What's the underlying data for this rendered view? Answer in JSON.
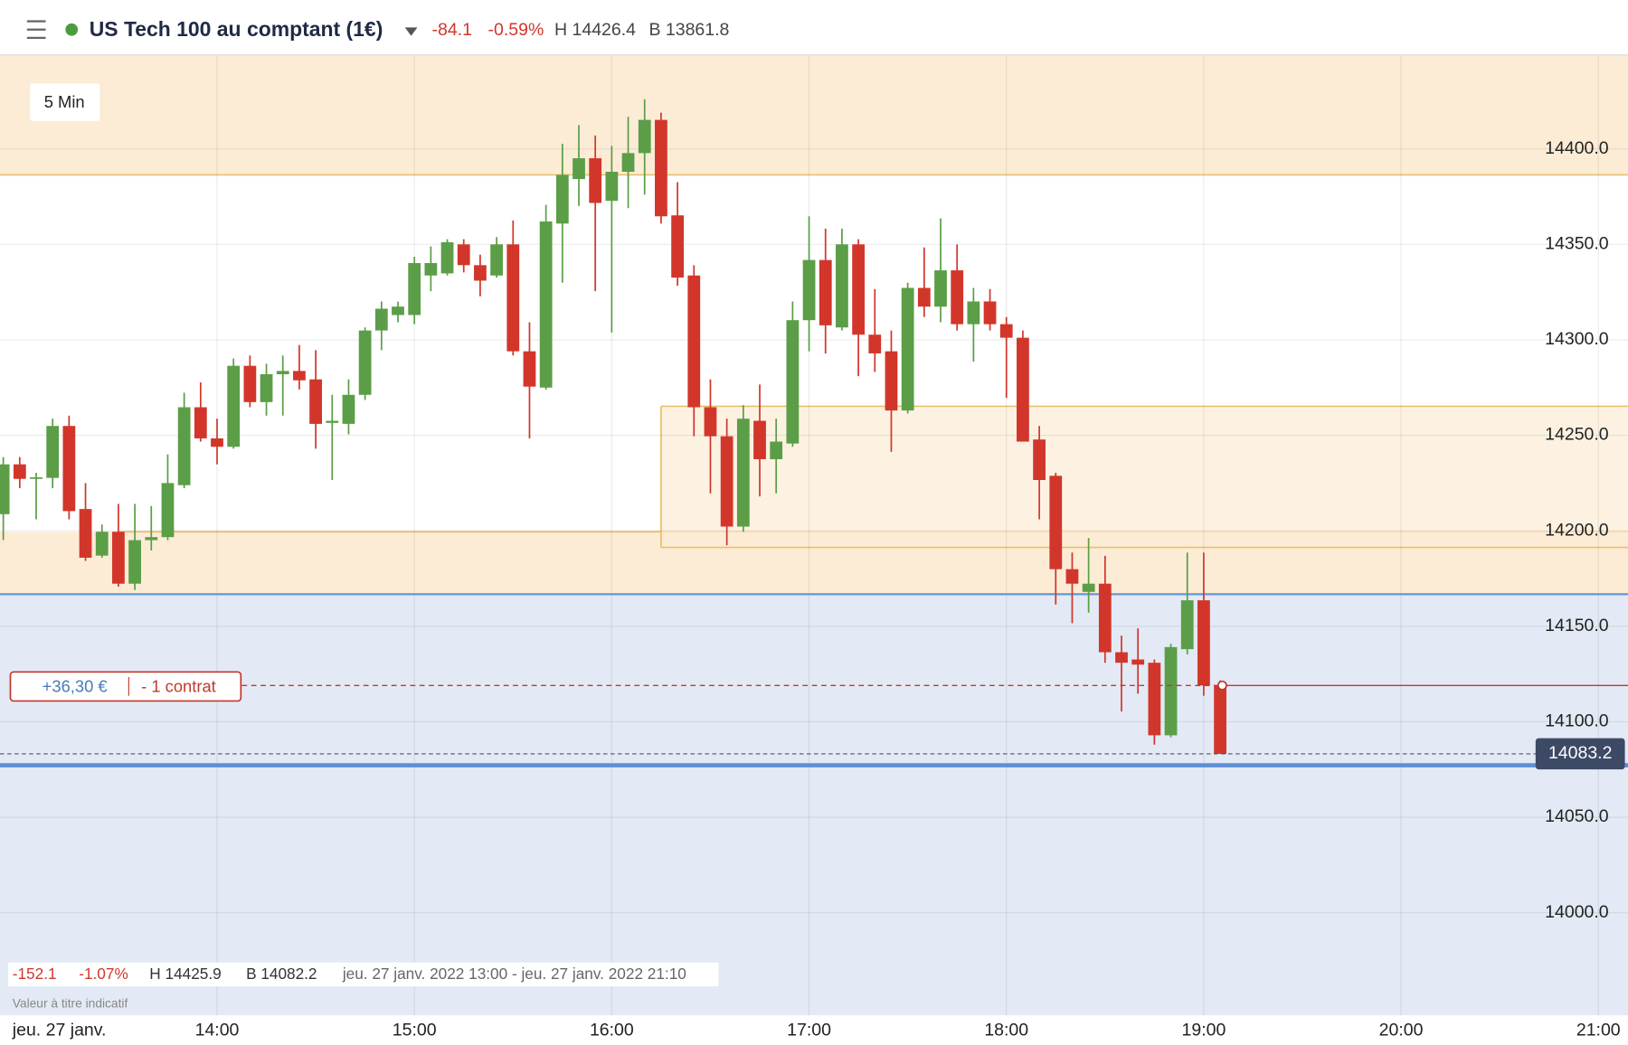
{
  "header": {
    "instrument": "US Tech 100 au comptant (1€)",
    "change": "-84.1",
    "change_pct": "-0.59%",
    "high": "H 14426.4",
    "low": "B 13861.8"
  },
  "timeframe": "5 Min",
  "position": {
    "pnl": "+36,30 €",
    "size": "- 1 contrat"
  },
  "footer": {
    "change": "-152.1",
    "change_pct": "-1.07%",
    "high": "H 14425.9",
    "low": "B 14082.2",
    "range": "jeu. 27 janv. 2022 13:00 - jeu. 27 janv. 2022 21:10",
    "note": "Valeur à titre indicatif",
    "date": "jeu. 27 janv."
  },
  "chart_data": {
    "type": "candlestick",
    "x": [
      "12:55",
      "13:00",
      "13:05",
      "13:10",
      "13:15",
      "13:20",
      "13:25",
      "13:30",
      "13:35",
      "13:40",
      "13:45",
      "13:50",
      "13:55",
      "14:00",
      "14:05",
      "14:10",
      "14:15",
      "14:20",
      "14:25",
      "14:30",
      "14:35",
      "14:40",
      "14:45",
      "14:50",
      "14:55",
      "15:00",
      "15:05",
      "15:10",
      "15:15",
      "15:20",
      "15:25",
      "15:30",
      "15:35",
      "15:40",
      "15:45",
      "15:50",
      "15:55",
      "16:00",
      "16:05",
      "16:10",
      "16:15",
      "16:20",
      "16:25",
      "16:30",
      "16:35",
      "16:40",
      "16:45",
      "16:50",
      "16:55",
      "17:00",
      "17:05",
      "17:10",
      "17:15",
      "17:20",
      "17:25",
      "17:30",
      "17:35",
      "17:40",
      "17:45",
      "17:50",
      "17:55",
      "18:00",
      "18:05",
      "18:10",
      "18:15",
      "18:20",
      "18:25",
      "18:30",
      "18:35",
      "18:40",
      "18:45",
      "18:50",
      "18:55",
      "19:00",
      "19:05"
    ],
    "open": [
      14208.7,
      14234.8,
      14227.2,
      14227.7,
      14254.9,
      14211.4,
      14187.0,
      14199.5,
      14172.3,
      14195.1,
      14196.7,
      14223.9,
      14264.7,
      14248.4,
      14244.0,
      14286.4,
      14267.4,
      14282.0,
      14283.7,
      14279.3,
      14256.5,
      14256.0,
      14271.2,
      14304.9,
      14313.0,
      14313.0,
      14333.7,
      14334.8,
      14350.0,
      14339.1,
      14333.7,
      14350.0,
      14294.0,
      14275.0,
      14360.9,
      14384.2,
      14395.1,
      14372.8,
      14388.0,
      14397.8,
      14415.2,
      14365.2,
      14333.7,
      14264.7,
      14249.5,
      14202.2,
      14257.6,
      14237.5,
      14245.7,
      14310.3,
      14341.8,
      14306.5,
      14350.0,
      14302.7,
      14294.0,
      14263.0,
      14327.2,
      14317.4,
      14336.4,
      14308.2,
      14320.1,
      14308.2,
      14301.1,
      14247.8,
      14228.8,
      14179.9,
      14168.0,
      14172.3,
      14136.4,
      14132.6,
      14130.9,
      14092.9,
      14138.0,
      14163.6,
      14119.0
    ],
    "high": [
      14238.6,
      14238.6,
      14230.4,
      14258.7,
      14260.3,
      14225.0,
      14203.3,
      14214.1,
      14214.1,
      14213.0,
      14240.0,
      14272.3,
      14277.7,
      14258.7,
      14290.2,
      14291.8,
      14287.5,
      14291.8,
      14297.3,
      14294.6,
      14271.2,
      14279.3,
      14306.5,
      14320.1,
      14320.0,
      14343.5,
      14348.9,
      14352.7,
      14352.7,
      14344.6,
      14353.8,
      14362.5,
      14309.2,
      14370.7,
      14402.7,
      14412.5,
      14407.0,
      14401.6,
      14416.8,
      14426.0,
      14419.0,
      14382.6,
      14339.1,
      14279.3,
      14258.7,
      14265.8,
      14276.6,
      14258.7,
      14320.1,
      14364.7,
      14358.2,
      14358.2,
      14352.7,
      14326.6,
      14304.9,
      14329.9,
      14348.4,
      14363.6,
      14350.0,
      14327.2,
      14326.6,
      14312.0,
      14304.9,
      14254.9,
      14230.4,
      14188.6,
      14196.2,
      14186.9,
      14145.1,
      14148.9,
      14132.6,
      14140.8,
      14188.6,
      14188.6,
      14121.7
    ],
    "low": [
      14195.1,
      14222.3,
      14206.0,
      14222.3,
      14206.0,
      14184.2,
      14185.9,
      14170.7,
      14169.0,
      14189.7,
      14195.1,
      14222.3,
      14246.7,
      14234.8,
      14243.0,
      14264.7,
      14260.3,
      14260.3,
      14274.0,
      14243.0,
      14226.6,
      14250.5,
      14268.5,
      14294.6,
      14309.2,
      14308.2,
      14325.5,
      14333.7,
      14335.3,
      14322.8,
      14332.6,
      14291.8,
      14248.4,
      14273.9,
      14329.9,
      14370.1,
      14325.5,
      14303.8,
      14369.0,
      14376.1,
      14360.9,
      14328.3,
      14249.5,
      14219.6,
      14192.4,
      14199.5,
      14218.0,
      14219.6,
      14244.0,
      14294.0,
      14292.9,
      14304.9,
      14281.0,
      14283.2,
      14241.3,
      14261.4,
      14312.0,
      14309.2,
      14304.9,
      14288.6,
      14304.9,
      14269.6,
      14246.7,
      14206.0,
      14161.4,
      14151.6,
      14157.1,
      14130.9,
      14105.4,
      14114.7,
      14088.0,
      14091.8,
      14135.3,
      14113.6,
      14083.2
    ],
    "close": [
      14234.8,
      14227.2,
      14228.0,
      14254.9,
      14210.3,
      14185.9,
      14199.5,
      14172.3,
      14195.1,
      14196.7,
      14225.0,
      14264.7,
      14248.4,
      14244.0,
      14286.4,
      14267.4,
      14282.0,
      14283.7,
      14278.8,
      14256.0,
      14257.6,
      14271.2,
      14304.9,
      14316.3,
      14317.4,
      14340.2,
      14340.2,
      14351.1,
      14339.1,
      14331.0,
      14350.0,
      14294.0,
      14275.5,
      14362.0,
      14386.4,
      14395.1,
      14371.7,
      14388.0,
      14397.8,
      14415.2,
      14364.7,
      14332.6,
      14264.7,
      14249.5,
      14202.2,
      14258.7,
      14237.5,
      14246.7,
      14310.3,
      14341.8,
      14307.6,
      14350.0,
      14302.7,
      14292.9,
      14263.0,
      14327.2,
      14317.4,
      14336.4,
      14308.2,
      14320.1,
      14308.2,
      14301.1,
      14246.7,
      14226.6,
      14179.9,
      14172.3,
      14172.3,
      14136.4,
      14130.9,
      14129.9,
      14092.9,
      14139.1,
      14163.6,
      14119.0,
      14083.2
    ],
    "up_color": "#5b9e47",
    "down_color": "#d2362b",
    "xlim": [
      "12:54",
      "21:09"
    ],
    "xticks": [
      "14:00",
      "15:00",
      "16:00",
      "17:00",
      "18:00",
      "19:00",
      "20:00",
      "21:00"
    ],
    "ylim": [
      13946.2,
      14448.9
    ],
    "yticks": [
      {
        "value": 14000,
        "label": "14000.0"
      },
      {
        "value": 14050,
        "label": "14050.0"
      },
      {
        "value": 14100,
        "label": "14100.0"
      },
      {
        "value": 14150,
        "label": "14150.0"
      },
      {
        "value": 14200,
        "label": "14200.0"
      },
      {
        "value": 14250,
        "label": "14250.0"
      },
      {
        "value": 14300,
        "label": "14300.0"
      },
      {
        "value": 14350,
        "label": "14350.0"
      },
      {
        "value": 14400,
        "label": "14400.0"
      }
    ],
    "grid": true,
    "zones": [
      {
        "low": 14386.4,
        "high": 14448.9,
        "start": "12:54"
      },
      {
        "low": 14166.8,
        "high": 14199.5,
        "start": "13:30"
      },
      {
        "low": 14191.3,
        "high": 14265.2,
        "start": "16:15"
      }
    ],
    "support_zone": {
      "low": 13946.2,
      "high": 14166.8
    },
    "support_line": 14077.2,
    "position_level": 14119.0,
    "position_time": "19:05",
    "last_price": 14083.2
  }
}
